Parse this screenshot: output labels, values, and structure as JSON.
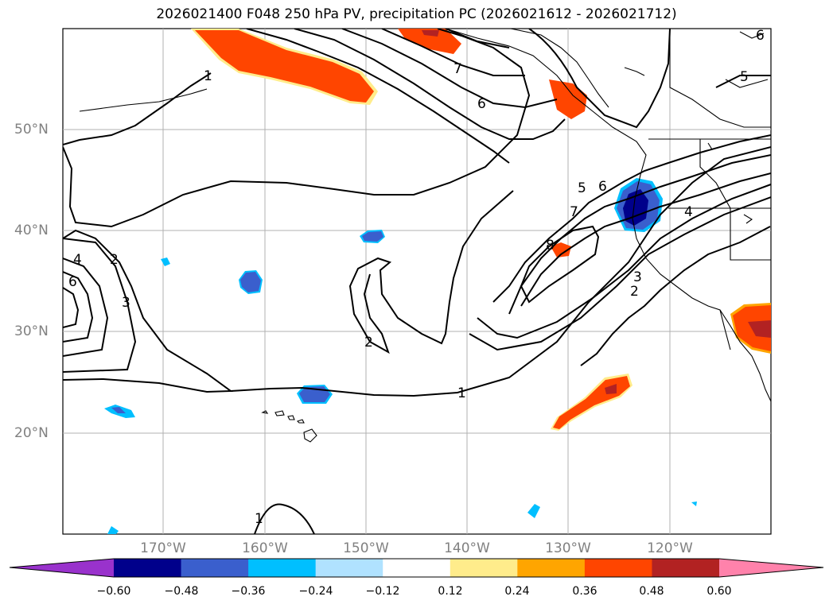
{
  "title": "2026021400 F048 250 hPa PV, precipitation PC (2026021612 - 2026021712)",
  "lat_labels": [
    "50°N",
    "40°N",
    "30°N",
    "20°N"
  ],
  "lon_labels": [
    "170°W",
    "160°W",
    "150°W",
    "140°W",
    "130°W",
    "120°W"
  ],
  "contour_labels": [
    "1",
    "1",
    "1",
    "2",
    "2",
    "2",
    "3",
    "3",
    "4",
    "4",
    "5",
    "5",
    "6",
    "6",
    "6",
    "7",
    "7",
    "8",
    "6"
  ],
  "colorbar": {
    "ticks": [
      "−0.60",
      "−0.48",
      "−0.36",
      "−0.24",
      "−0.12",
      "0.12",
      "0.24",
      "0.36",
      "0.48",
      "0.60"
    ],
    "colors": [
      "#9932cc",
      "#00008b",
      "#3a5fcd",
      "#00bfff",
      "#b0e2ff",
      "#ffffff",
      "#ffec8b",
      "#ffa500",
      "#ff4500",
      "#b22222",
      "#ff82ab"
    ]
  },
  "colors": {
    "grid": "#b0b0b0",
    "contour": "#000000",
    "label_gray": "#808080"
  }
}
